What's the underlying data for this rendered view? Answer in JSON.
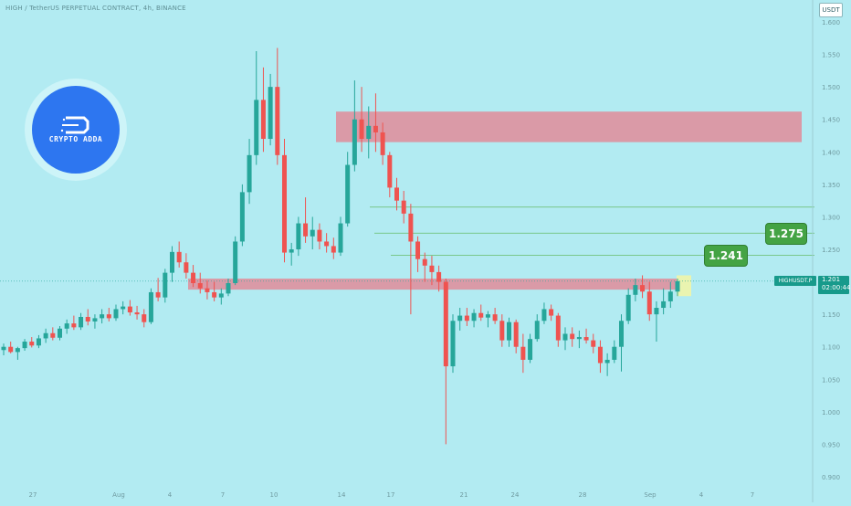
{
  "header": {
    "title": "HIGH / TetherUS PERPETUAL CONTRACT, 4h, BINANCE"
  },
  "currency_button": "USDT",
  "logo": {
    "text": "CRYPTO ADDA"
  },
  "badges": {
    "level_1": "1.241",
    "level_2": "1.275"
  },
  "price_tag": {
    "symbol": "HIGHUSDT.P",
    "price": "1.201",
    "countdown": "02:00:44"
  },
  "colors": {
    "background": "#b2ebf2",
    "up_candle": "#26a69a",
    "down_candle": "#ef5350",
    "resistance_zone": "#e08c9a",
    "target_line": "#66bb6a",
    "highlight_box": "#f0f5a8"
  },
  "chart_data": {
    "type": "candlestick",
    "title": "HIGH / TetherUS PERPETUAL CONTRACT, 4h, BINANCE",
    "y_axis": {
      "range": [
        0.9,
        1.6
      ],
      "ticks": [
        "0.900",
        "0.950",
        "1.000",
        "1.050",
        "1.100",
        "1.150",
        "1.200",
        "1.250",
        "1.300",
        "1.350",
        "1.400",
        "1.450",
        "1.500",
        "1.550",
        "1.600"
      ]
    },
    "x_axis": {
      "ticks": [
        "27",
        "Aug",
        "4",
        "7",
        "10",
        "14",
        "17",
        "21",
        "24",
        "28",
        "Sep",
        "4",
        "7"
      ]
    },
    "current_price": 1.201,
    "zones": [
      {
        "name": "resistance",
        "from": 1.415,
        "to": 1.462
      },
      {
        "name": "support",
        "from": 1.188,
        "to": 1.205
      }
    ],
    "targets": [
      1.241,
      1.275,
      1.315
    ],
    "candles": [
      [
        1.095,
        1.105,
        1.087,
        1.1
      ],
      [
        1.1,
        1.108,
        1.09,
        1.092
      ],
      [
        1.092,
        1.1,
        1.08,
        1.098
      ],
      [
        1.098,
        1.112,
        1.094,
        1.108
      ],
      [
        1.108,
        1.115,
        1.099,
        1.102
      ],
      [
        1.102,
        1.118,
        1.098,
        1.113
      ],
      [
        1.113,
        1.128,
        1.106,
        1.121
      ],
      [
        1.121,
        1.13,
        1.11,
        1.114
      ],
      [
        1.114,
        1.132,
        1.11,
        1.128
      ],
      [
        1.128,
        1.142,
        1.12,
        1.136
      ],
      [
        1.136,
        1.148,
        1.126,
        1.13
      ],
      [
        1.13,
        1.152,
        1.126,
        1.146
      ],
      [
        1.146,
        1.158,
        1.133,
        1.139
      ],
      [
        1.139,
        1.15,
        1.128,
        1.144
      ],
      [
        1.144,
        1.158,
        1.136,
        1.15
      ],
      [
        1.15,
        1.16,
        1.139,
        1.144
      ],
      [
        1.144,
        1.165,
        1.14,
        1.158
      ],
      [
        1.158,
        1.17,
        1.15,
        1.162
      ],
      [
        1.162,
        1.172,
        1.148,
        1.153
      ],
      [
        1.153,
        1.163,
        1.142,
        1.15
      ],
      [
        1.15,
        1.158,
        1.13,
        1.138
      ],
      [
        1.138,
        1.19,
        1.135,
        1.184
      ],
      [
        1.184,
        1.206,
        1.17,
        1.176
      ],
      [
        1.176,
        1.22,
        1.168,
        1.214
      ],
      [
        1.214,
        1.255,
        1.2,
        1.246
      ],
      [
        1.246,
        1.262,
        1.222,
        1.23
      ],
      [
        1.23,
        1.244,
        1.205,
        1.214
      ],
      [
        1.214,
        1.226,
        1.192,
        1.198
      ],
      [
        1.198,
        1.214,
        1.182,
        1.19
      ],
      [
        1.19,
        1.202,
        1.173,
        1.184
      ],
      [
        1.184,
        1.2,
        1.17,
        1.176
      ],
      [
        1.176,
        1.19,
        1.165,
        1.182
      ],
      [
        1.182,
        1.205,
        1.178,
        1.198
      ],
      [
        1.198,
        1.27,
        1.195,
        1.262
      ],
      [
        1.262,
        1.35,
        1.255,
        1.338
      ],
      [
        1.338,
        1.42,
        1.32,
        1.395
      ],
      [
        1.395,
        1.555,
        1.38,
        1.48
      ],
      [
        1.48,
        1.53,
        1.4,
        1.42
      ],
      [
        1.42,
        1.52,
        1.41,
        1.5
      ],
      [
        1.5,
        1.56,
        1.38,
        1.395
      ],
      [
        1.395,
        1.42,
        1.23,
        1.245
      ],
      [
        1.245,
        1.26,
        1.225,
        1.25
      ],
      [
        1.25,
        1.3,
        1.24,
        1.29
      ],
      [
        1.29,
        1.33,
        1.26,
        1.27
      ],
      [
        1.27,
        1.3,
        1.25,
        1.28
      ],
      [
        1.28,
        1.29,
        1.25,
        1.262
      ],
      [
        1.262,
        1.275,
        1.245,
        1.255
      ],
      [
        1.255,
        1.268,
        1.235,
        1.245
      ],
      [
        1.245,
        1.3,
        1.24,
        1.29
      ],
      [
        1.29,
        1.4,
        1.285,
        1.38
      ],
      [
        1.38,
        1.51,
        1.37,
        1.45
      ],
      [
        1.45,
        1.5,
        1.4,
        1.42
      ],
      [
        1.42,
        1.47,
        1.39,
        1.44
      ],
      [
        1.44,
        1.49,
        1.4,
        1.43
      ],
      [
        1.43,
        1.445,
        1.38,
        1.395
      ],
      [
        1.395,
        1.4,
        1.33,
        1.345
      ],
      [
        1.345,
        1.36,
        1.31,
        1.325
      ],
      [
        1.325,
        1.34,
        1.29,
        1.305
      ],
      [
        1.305,
        1.32,
        1.15,
        1.262
      ],
      [
        1.262,
        1.27,
        1.215,
        1.235
      ],
      [
        1.235,
        1.245,
        1.2,
        1.225
      ],
      [
        1.225,
        1.24,
        1.195,
        1.215
      ],
      [
        1.215,
        1.225,
        1.185,
        1.2
      ],
      [
        1.2,
        1.205,
        0.95,
        1.07
      ],
      [
        1.07,
        1.15,
        1.06,
        1.14
      ],
      [
        1.14,
        1.16,
        1.125,
        1.148
      ],
      [
        1.148,
        1.16,
        1.132,
        1.14
      ],
      [
        1.14,
        1.158,
        1.13,
        1.152
      ],
      [
        1.152,
        1.165,
        1.14,
        1.145
      ],
      [
        1.145,
        1.155,
        1.13,
        1.15
      ],
      [
        1.15,
        1.16,
        1.135,
        1.14
      ],
      [
        1.14,
        1.15,
        1.1,
        1.11
      ],
      [
        1.11,
        1.145,
        1.1,
        1.138
      ],
      [
        1.138,
        1.142,
        1.09,
        1.1
      ],
      [
        1.1,
        1.12,
        1.06,
        1.08
      ],
      [
        1.08,
        1.12,
        1.075,
        1.112
      ],
      [
        1.112,
        1.15,
        1.108,
        1.14
      ],
      [
        1.14,
        1.168,
        1.135,
        1.158
      ],
      [
        1.158,
        1.165,
        1.14,
        1.148
      ],
      [
        1.148,
        1.152,
        1.1,
        1.11
      ],
      [
        1.11,
        1.13,
        1.095,
        1.12
      ],
      [
        1.12,
        1.13,
        1.1,
        1.112
      ],
      [
        1.112,
        1.125,
        1.098,
        1.115
      ],
      [
        1.115,
        1.128,
        1.105,
        1.11
      ],
      [
        1.11,
        1.12,
        1.09,
        1.1
      ],
      [
        1.1,
        1.11,
        1.06,
        1.075
      ],
      [
        1.075,
        1.09,
        1.055,
        1.08
      ],
      [
        1.08,
        1.11,
        1.075,
        1.1
      ],
      [
        1.1,
        1.15,
        1.062,
        1.14
      ],
      [
        1.14,
        1.19,
        1.135,
        1.18
      ],
      [
        1.18,
        1.205,
        1.17,
        1.195
      ],
      [
        1.195,
        1.21,
        1.175,
        1.185
      ],
      [
        1.185,
        1.2,
        1.14,
        1.15
      ],
      [
        1.15,
        1.17,
        1.108,
        1.16
      ],
      [
        1.16,
        1.19,
        1.15,
        1.17
      ],
      [
        1.17,
        1.2,
        1.16,
        1.185
      ],
      [
        1.185,
        1.205,
        1.178,
        1.201
      ]
    ]
  }
}
